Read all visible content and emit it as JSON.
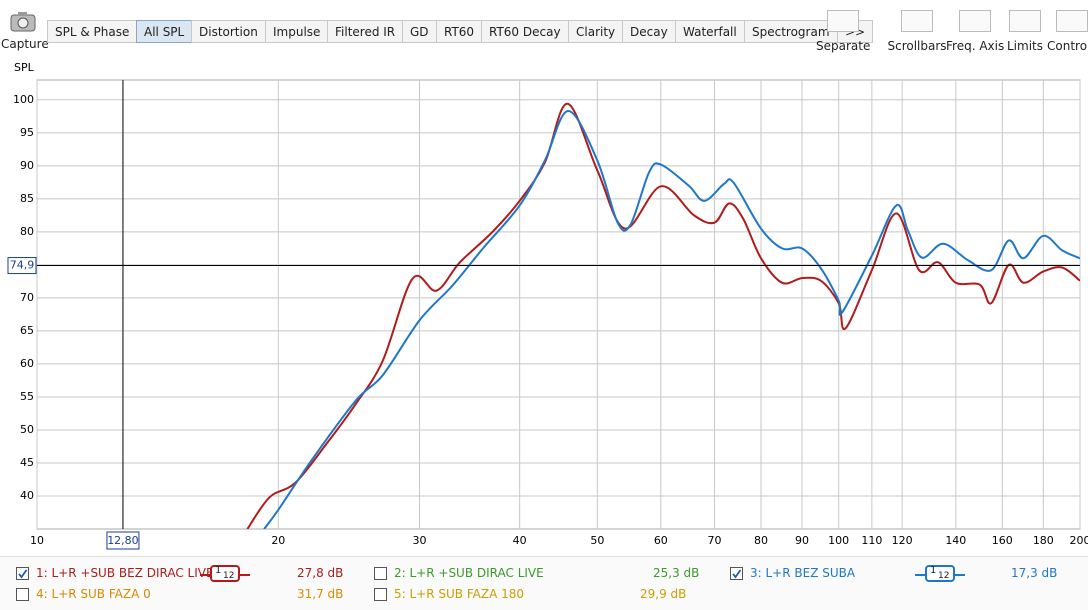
{
  "toolbar": {
    "capture": "Capture",
    "tabs": [
      "SPL & Phase",
      "All SPL",
      "Distortion",
      "Impulse",
      "Filtered IR",
      "GD",
      "RT60",
      "RT60 Decay",
      "Clarity",
      "Decay",
      "Waterfall",
      "Spectrogram",
      ">>"
    ],
    "tools": [
      "Separate",
      "Scrollbars",
      "Freq. Axis",
      "Limits",
      "Controls"
    ]
  },
  "chart_data": {
    "type": "line",
    "ylabel": "SPL",
    "log_x": true,
    "grid": true,
    "xlim": [
      10,
      200
    ],
    "ylim": [
      35,
      103
    ],
    "xticks": [
      10,
      20,
      30,
      40,
      50,
      60,
      70,
      80,
      90,
      100,
      110,
      120,
      140,
      160,
      180,
      200
    ],
    "yticks": [
      40,
      45,
      50,
      55,
      60,
      65,
      70,
      75,
      80,
      85,
      90,
      95,
      100
    ],
    "cursor": {
      "x": {
        "value": 12.8,
        "label": "12,80"
      },
      "y": {
        "value": 74.9,
        "label": "74,9"
      }
    },
    "series": [
      {
        "name": "1: L+R +SUB BEZ DIRAC LIVE",
        "color": "#b01c1c",
        "checked": true,
        "smoothing": {
          "num": "1",
          "den": "12"
        },
        "level": "27,8 dB",
        "x": [
          18.3,
          19.5,
          21,
          23,
          25,
          27,
          29.4,
          31.5,
          33.7,
          37,
          40,
          43,
          45.9,
          50,
          54.1,
          60,
          66,
          70,
          73,
          76,
          80,
          85,
          90,
          95,
          100,
          102,
          110,
          118,
          126,
          133,
          140,
          150,
          155,
          163,
          170,
          180,
          190,
          200
        ],
        "values": [
          35,
          39.8,
          42,
          48,
          54,
          60.5,
          72.9,
          71.1,
          75.4,
          80,
          84.7,
          90.5,
          99.4,
          89.3,
          80.5,
          86.9,
          82.5,
          81.4,
          84.3,
          82,
          76,
          72.3,
          73,
          72.6,
          69.2,
          65.4,
          74.2,
          82.8,
          74.2,
          75.4,
          72.3,
          72,
          69.2,
          75,
          72.3,
          74,
          74.6,
          72.6
        ]
      },
      {
        "name": "3: L+R BEZ SUBA",
        "color": "#1e78c8",
        "checked": true,
        "smoothing": {
          "num": "1",
          "den": "12"
        },
        "level": "17,3 dB",
        "x": [
          19.2,
          20,
          22,
          25,
          27,
          30,
          33,
          36,
          40,
          43,
          46,
          50,
          53,
          55,
          58,
          60,
          65,
          68,
          72,
          74,
          80,
          85,
          90,
          95,
          100,
          101,
          110,
          118,
          122,
          127,
          135,
          145,
          155,
          163,
          170,
          180,
          190,
          200
        ],
        "values": [
          35,
          37.9,
          45.4,
          54.5,
          58.3,
          66.6,
          71.9,
          77.5,
          84,
          90.8,
          98.3,
          90.8,
          81.4,
          81.1,
          89,
          90.2,
          87,
          84.7,
          87.3,
          87.4,
          80.5,
          77.5,
          77.5,
          74.5,
          69.6,
          67.8,
          76.4,
          84,
          80.2,
          76.1,
          78.2,
          75.7,
          74.2,
          78.7,
          76,
          79.4,
          77.2,
          76
        ]
      }
    ],
    "hidden_series": [
      {
        "name": "2: L+R +SUB DIRAC LIVE",
        "color": "#3c9a2c",
        "checked": false,
        "level": "25,3 dB"
      },
      {
        "name": "4: L+R SUB FAZA 0",
        "color": "#d98a00",
        "checked": false,
        "level": "31,7 dB"
      },
      {
        "name": "5: L+R SUB FAZA 180",
        "color": "#c8a000",
        "checked": false,
        "level": "29,9 dB"
      }
    ]
  }
}
